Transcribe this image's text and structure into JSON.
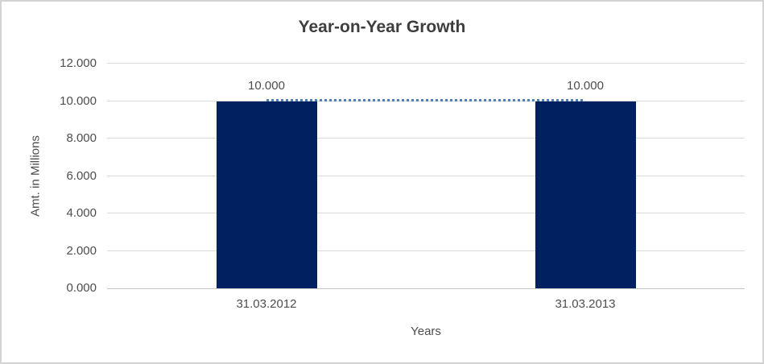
{
  "frame": {
    "background": "#ffffff",
    "border_color": "#d3d3d3"
  },
  "chart_data": {
    "type": "bar",
    "title": "Year-on-Year Growth",
    "xlabel": "Years",
    "ylabel": "Amt. in Millions",
    "categories": [
      "31.03.2012",
      "31.03.2013"
    ],
    "series": [
      {
        "type": "bar",
        "values": [
          10,
          10
        ],
        "value_labels": [
          "10.000",
          "10.000"
        ],
        "color": "#002060"
      },
      {
        "type": "line",
        "line_style": "dotted",
        "values": [
          10,
          10
        ],
        "color": "#4d7ebf"
      }
    ],
    "ylim": [
      0,
      12
    ],
    "y_ticks": [
      0,
      2,
      4,
      6,
      8,
      10,
      12
    ],
    "y_tick_labels": [
      "0.000",
      "2.000",
      "4.000",
      "6.000",
      "8.000",
      "10.000",
      "12.000"
    ],
    "grid": true,
    "legend": false,
    "colors": {
      "gridline": "#d9d9d9",
      "axis_line": "#c6c6c6",
      "text": "#4d4d4d",
      "title": "#3e3e3e"
    }
  }
}
